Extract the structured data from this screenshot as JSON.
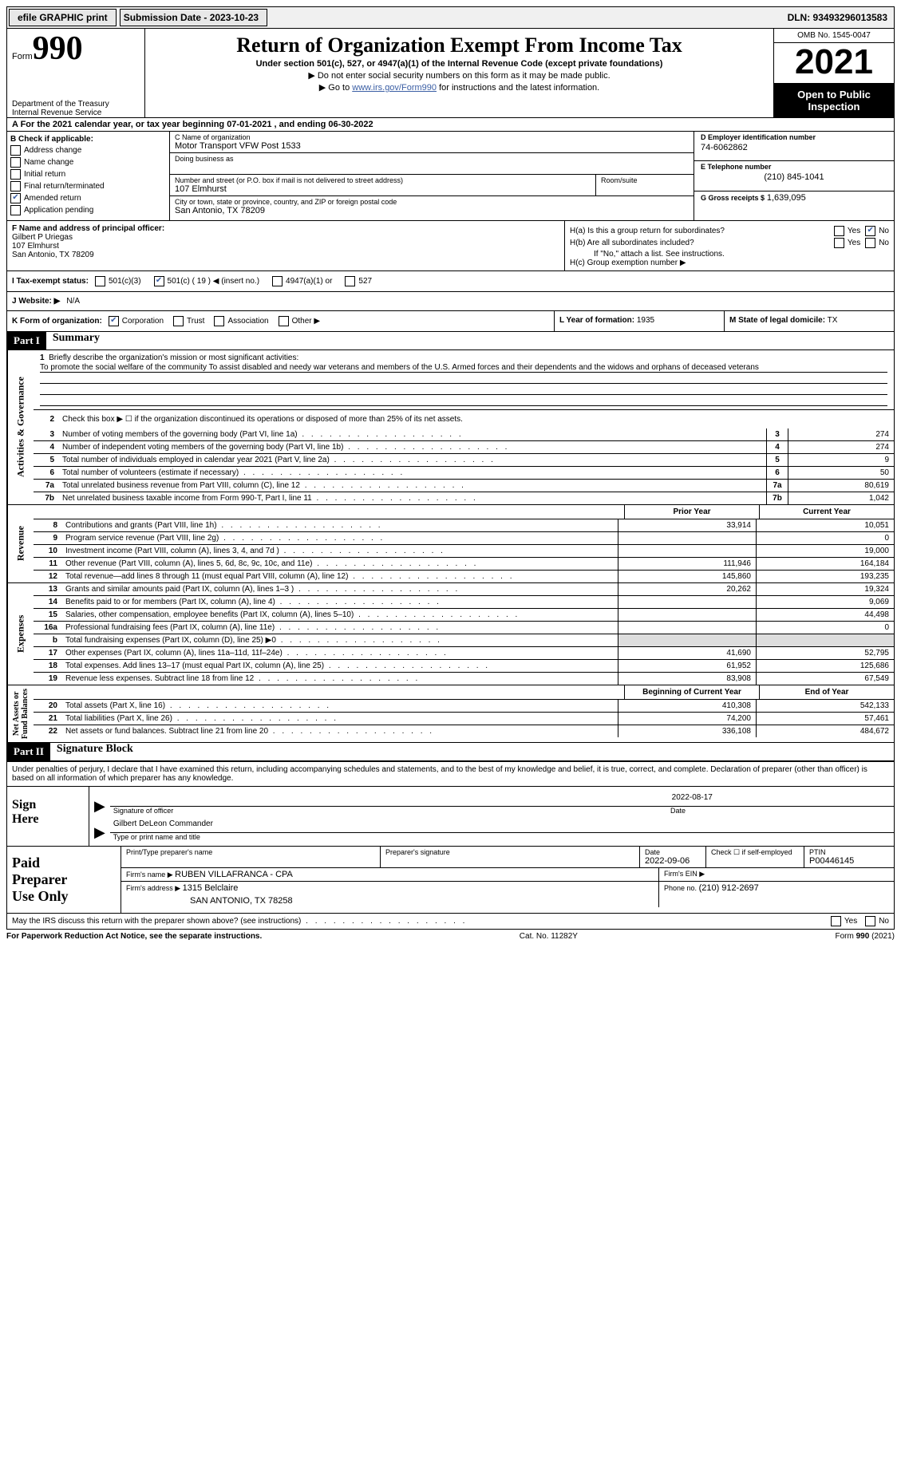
{
  "topbar": {
    "efile": "efile GRAPHIC print",
    "submission": "Submission Date - 2023-10-23",
    "dln": "DLN: 93493296013583"
  },
  "header": {
    "form_label": "Form",
    "form_num": "990",
    "title": "Return of Organization Exempt From Income Tax",
    "sub1": "Under section 501(c), 527, or 4947(a)(1) of the Internal Revenue Code (except private foundations)",
    "sub2": "▶ Do not enter social security numbers on this form as it may be made public.",
    "sub3_pre": "▶ Go to ",
    "sub3_link": "www.irs.gov/Form990",
    "sub3_post": " for instructions and the latest information.",
    "dept": "Department of the Treasury\nInternal Revenue Service",
    "omb": "OMB No. 1545-0047",
    "year": "2021",
    "inspect": "Open to Public\nInspection"
  },
  "row_a": "A For the 2021 calendar year, or tax year beginning 07-01-2021    , and ending 06-30-2022",
  "col_b": {
    "hdr": "B Check if applicable:",
    "address_change": "Address change",
    "name_change": "Name change",
    "initial_return": "Initial return",
    "final_return": "Final return/terminated",
    "amended_return": "Amended return",
    "app_pending": "Application pending"
  },
  "col_c": {
    "name_lbl": "C Name of organization",
    "name_val": "Motor Transport VFW Post 1533",
    "dba_lbl": "Doing business as",
    "addr_lbl": "Number and street (or P.O. box if mail is not delivered to street address)",
    "addr_val": "107 Elmhurst",
    "room_lbl": "Room/suite",
    "city_lbl": "City or town, state or province, country, and ZIP or foreign postal code",
    "city_val": "San Antonio, TX  78209"
  },
  "col_d": {
    "ein_lbl": "D Employer identification number",
    "ein_val": "74-6062862",
    "tel_lbl": "E Telephone number",
    "tel_val": "(210) 845-1041",
    "gross_lbl": "G Gross receipts $",
    "gross_val": "1,639,095"
  },
  "section_f": {
    "lbl": "F Name and address of principal officer:",
    "name": "Gilbert P Uriegas",
    "addr1": "107 Elmhurst",
    "addr2": "San Antonio, TX  78209"
  },
  "section_h": {
    "ha": "H(a)  Is this a group return for subordinates?",
    "hb": "H(b)  Are all subordinates included?",
    "hb_note": "If \"No,\" attach a list. See instructions.",
    "hc": "H(c)  Group exemption number ▶"
  },
  "row_i": {
    "lbl": "I  Tax-exempt status:",
    "o1": "501(c)(3)",
    "o2": "501(c) ( 19 ) ◀ (insert no.)",
    "o3": "4947(a)(1) or",
    "o4": "527"
  },
  "row_j": {
    "lbl": "J  Website: ▶",
    "val": "N/A"
  },
  "row_k": {
    "lbl": "K Form of organization:",
    "corp": "Corporation",
    "trust": "Trust",
    "assoc": "Association",
    "other": "Other ▶"
  },
  "row_l": {
    "lbl": "L Year of formation:",
    "val": "1935"
  },
  "row_m": {
    "lbl": "M State of legal domicile:",
    "val": "TX"
  },
  "part1": {
    "hdr": "Part I",
    "title": "Summary",
    "line1_lbl": "Briefly describe the organization's mission or most significant activities:",
    "mission": "To promote the social welfare of the community To assist disabled and needy war veterans and members of the U.S. Armed forces and their dependents and the widows and orphans of deceased veterans",
    "line2": "Check this box ▶ ☐  if the organization discontinued its operations or disposed of more than 25% of its net assets.",
    "rows_ag": [
      {
        "n": "3",
        "d": "Number of voting members of the governing body (Part VI, line 1a)",
        "v": "274"
      },
      {
        "n": "4",
        "d": "Number of independent voting members of the governing body (Part VI, line 1b)",
        "v": "274"
      },
      {
        "n": "5",
        "d": "Total number of individuals employed in calendar year 2021 (Part V, line 2a)",
        "v": "9"
      },
      {
        "n": "6",
        "d": "Total number of volunteers (estimate if necessary)",
        "v": "50"
      },
      {
        "n": "7a",
        "d": "Total unrelated business revenue from Part VIII, column (C), line 12",
        "v": "80,619"
      },
      {
        "n": "7b",
        "d": "Net unrelated business taxable income from Form 990-T, Part I, line 11",
        "v": "1,042"
      }
    ],
    "col_py": "Prior Year",
    "col_cy": "Current Year",
    "col_boy": "Beginning of Current Year",
    "col_eoy": "End of Year",
    "rev_rows": [
      {
        "n": "8",
        "d": "Contributions and grants (Part VIII, line 1h)",
        "py": "33,914",
        "cy": "10,051"
      },
      {
        "n": "9",
        "d": "Program service revenue (Part VIII, line 2g)",
        "py": "",
        "cy": "0"
      },
      {
        "n": "10",
        "d": "Investment income (Part VIII, column (A), lines 3, 4, and 7d )",
        "py": "",
        "cy": "19,000"
      },
      {
        "n": "11",
        "d": "Other revenue (Part VIII, column (A), lines 5, 6d, 8c, 9c, 10c, and 11e)",
        "py": "111,946",
        "cy": "164,184"
      },
      {
        "n": "12",
        "d": "Total revenue—add lines 8 through 11 (must equal Part VIII, column (A), line 12)",
        "py": "145,860",
        "cy": "193,235"
      }
    ],
    "exp_rows": [
      {
        "n": "13",
        "d": "Grants and similar amounts paid (Part IX, column (A), lines 1–3 )",
        "py": "20,262",
        "cy": "19,324"
      },
      {
        "n": "14",
        "d": "Benefits paid to or for members (Part IX, column (A), line 4)",
        "py": "",
        "cy": "9,069"
      },
      {
        "n": "15",
        "d": "Salaries, other compensation, employee benefits (Part IX, column (A), lines 5–10)",
        "py": "",
        "cy": "44,498"
      },
      {
        "n": "16a",
        "d": "Professional fundraising fees (Part IX, column (A), line 11e)",
        "py": "",
        "cy": "0"
      },
      {
        "n": "b",
        "d": "Total fundraising expenses (Part IX, column (D), line 25) ▶0",
        "py": "shade",
        "cy": "shade"
      },
      {
        "n": "17",
        "d": "Other expenses (Part IX, column (A), lines 11a–11d, 11f–24e)",
        "py": "41,690",
        "cy": "52,795"
      },
      {
        "n": "18",
        "d": "Total expenses. Add lines 13–17 (must equal Part IX, column (A), line 25)",
        "py": "61,952",
        "cy": "125,686"
      },
      {
        "n": "19",
        "d": "Revenue less expenses. Subtract line 18 from line 12",
        "py": "83,908",
        "cy": "67,549"
      }
    ],
    "na_rows": [
      {
        "n": "20",
        "d": "Total assets (Part X, line 16)",
        "py": "410,308",
        "cy": "542,133"
      },
      {
        "n": "21",
        "d": "Total liabilities (Part X, line 26)",
        "py": "74,200",
        "cy": "57,461"
      },
      {
        "n": "22",
        "d": "Net assets or fund balances. Subtract line 21 from line 20",
        "py": "336,108",
        "cy": "484,672"
      }
    ]
  },
  "side": {
    "ag": "Activities & Governance",
    "rev": "Revenue",
    "exp": "Expenses",
    "na": "Net Assets or\nFund Balances"
  },
  "part2": {
    "hdr": "Part II",
    "title": "Signature Block",
    "penalty": "Under penalties of perjury, I declare that I have examined this return, including accompanying schedules and statements, and to the best of my knowledge and belief, it is true, correct, and complete. Declaration of preparer (other than officer) is based on all information of which preparer has any knowledge.",
    "sign_here": "Sign\nHere",
    "sig_off_lbl": "Signature of officer",
    "date_lbl": "Date",
    "date_val": "2022-08-17",
    "name_title": "Gilbert DeLeon  Commander",
    "name_title_lbl": "Type or print name and title",
    "paid": "Paid\nPreparer\nUse Only",
    "prep_name_lbl": "Print/Type preparer's name",
    "prep_sig_lbl": "Preparer's signature",
    "prep_date_lbl": "Date",
    "prep_date_val": "2022-09-06",
    "check_self": "Check ☐ if self-employed",
    "ptin_lbl": "PTIN",
    "ptin_val": "P00446145",
    "firm_name_lbl": "Firm's name    ▶",
    "firm_name_val": "RUBEN VILLAFRANCA - CPA",
    "firm_ein_lbl": "Firm's EIN ▶",
    "firm_addr_lbl": "Firm's address ▶",
    "firm_addr_val": "1315 Belclaire",
    "firm_addr_val2": "SAN ANTONIO, TX  78258",
    "phone_lbl": "Phone no.",
    "phone_val": "(210) 912-2697",
    "may": "May the IRS discuss this return with the preparer shown above? (see instructions)"
  },
  "footer": {
    "left": "For Paperwork Reduction Act Notice, see the separate instructions.",
    "mid": "Cat. No. 11282Y",
    "right": "Form 990 (2021)"
  },
  "yn": {
    "yes": "Yes",
    "no": "No"
  }
}
